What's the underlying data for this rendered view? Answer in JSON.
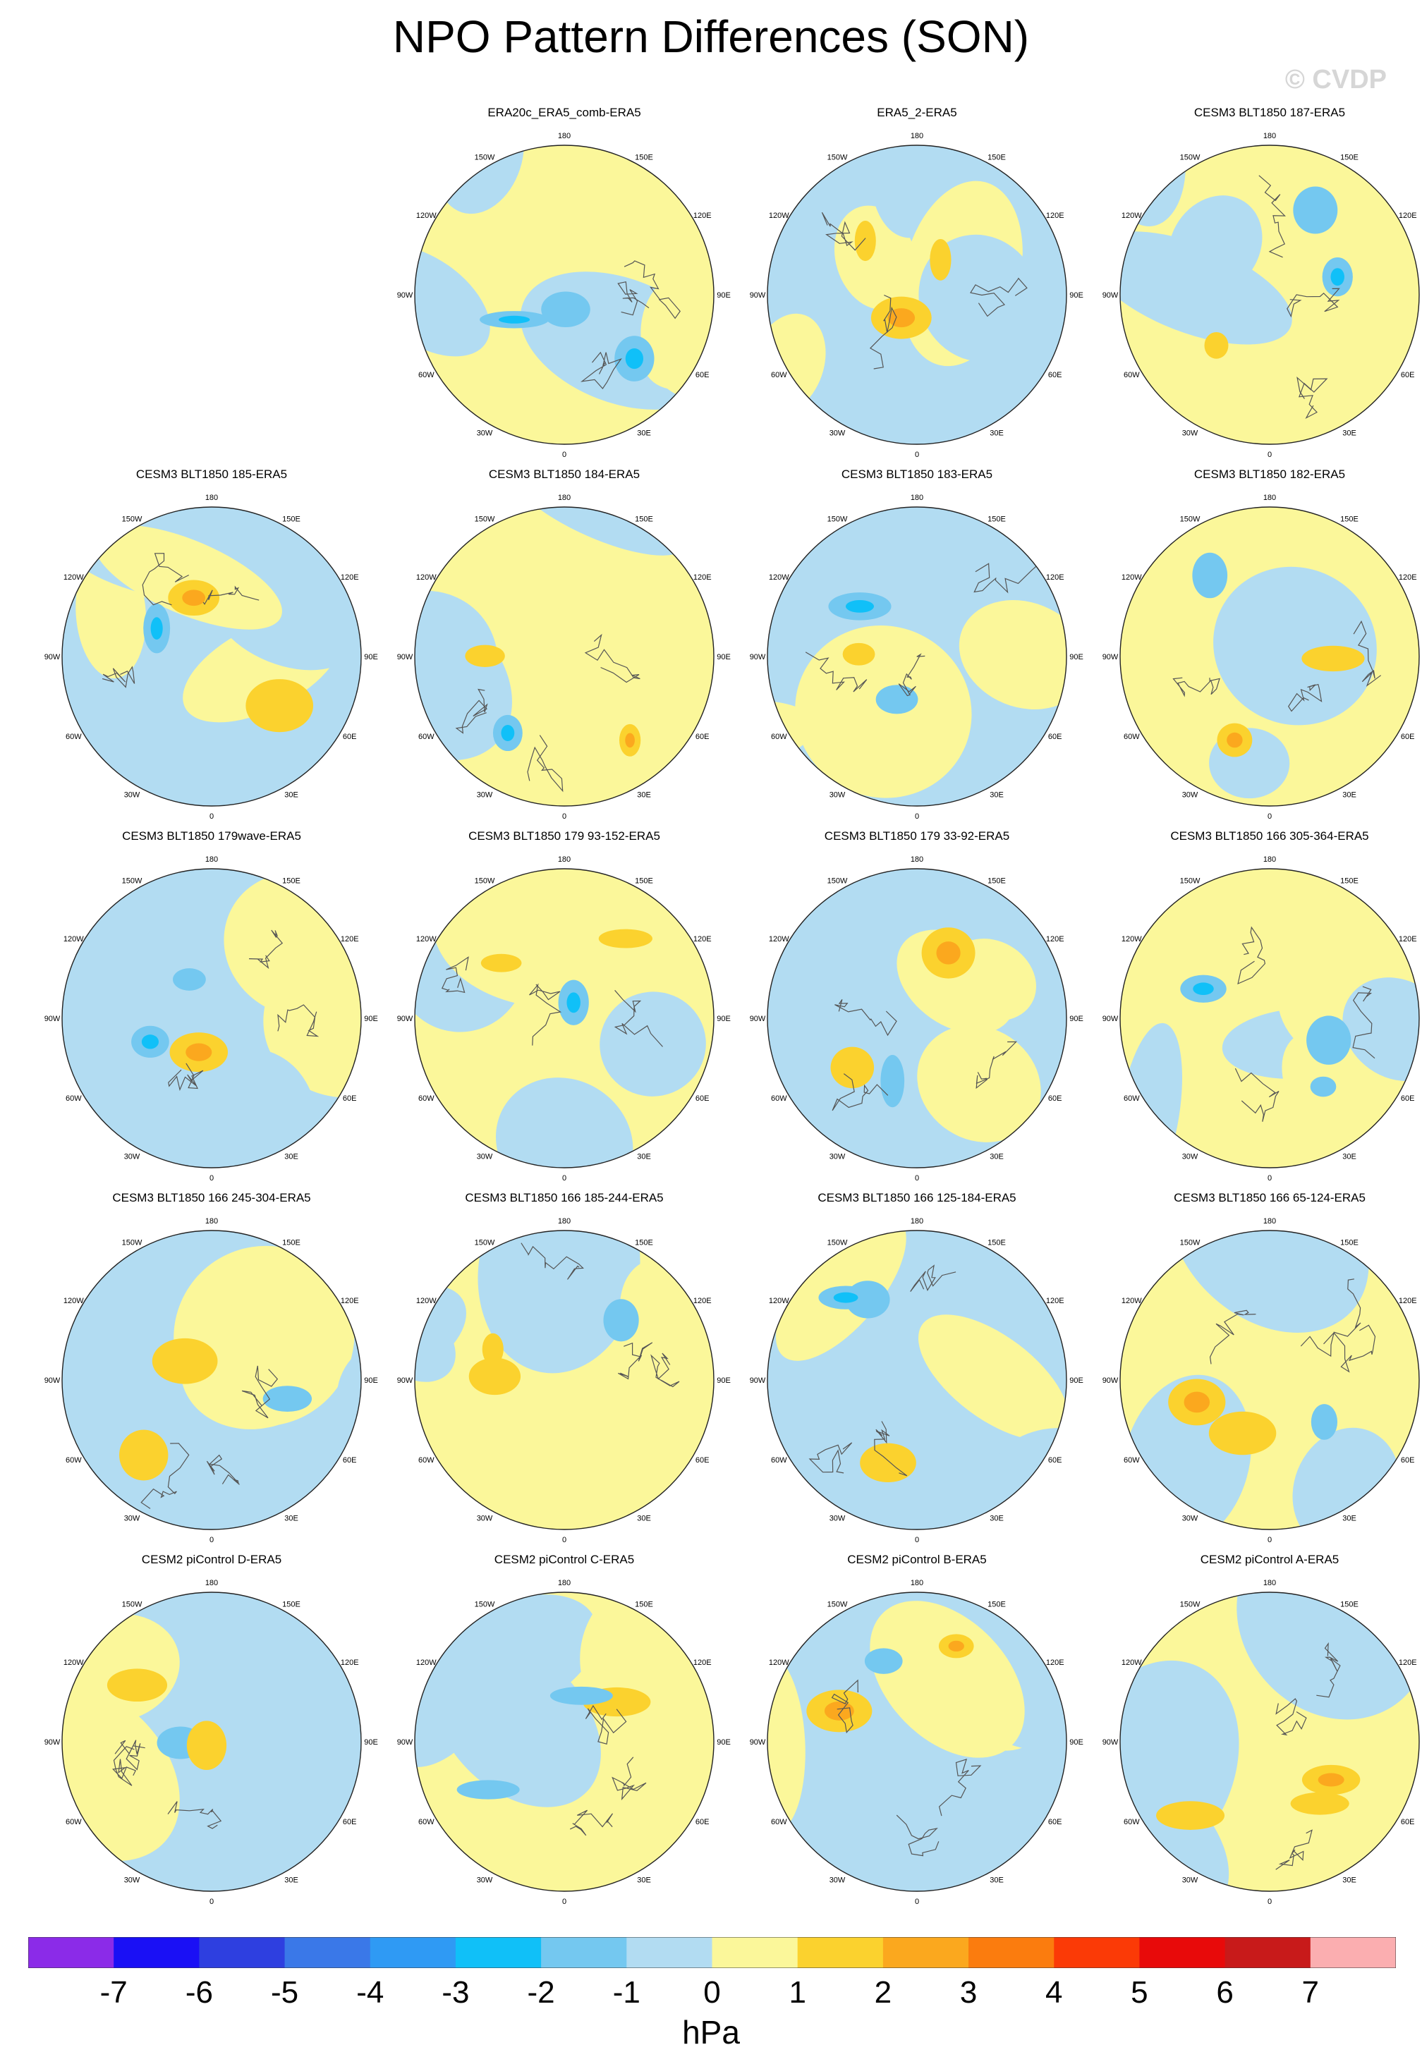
{
  "title": "NPO Pattern Differences (SON)",
  "watermark": "© CVDP",
  "units": "hPa",
  "lon_labels": [
    "180",
    "150E",
    "120E",
    "90E",
    "60E",
    "30E",
    "0",
    "30W",
    "60W",
    "90W",
    "120W",
    "150W"
  ],
  "colorbar": {
    "colors": [
      "#8b2be8",
      "#1a10f5",
      "#2e3fe0",
      "#3a78e8",
      "#2f9af4",
      "#10c0f8",
      "#74c8f0",
      "#b2dcf2",
      "#fbf79a",
      "#fbd22e",
      "#fba81e",
      "#fb7c0e",
      "#fb3a06",
      "#e80a0a",
      "#c81a1a",
      "#fbaeb0"
    ],
    "labels": [
      "-7",
      "-6",
      "-5",
      "-4",
      "-3",
      "-2",
      "-1",
      "0",
      "1",
      "2",
      "3",
      "4",
      "5",
      "6",
      "7"
    ]
  },
  "panels": [
    {
      "title": "ERA20c_ERA5_comb-ERA5",
      "row": 0,
      "col": 1
    },
    {
      "title": "ERA5_2-ERA5",
      "row": 0,
      "col": 2
    },
    {
      "title": "CESM3 BLT1850 187-ERA5",
      "row": 0,
      "col": 3
    },
    {
      "title": "CESM3 BLT1850 185-ERA5",
      "row": 1,
      "col": 0
    },
    {
      "title": "CESM3 BLT1850 184-ERA5",
      "row": 1,
      "col": 1
    },
    {
      "title": "CESM3 BLT1850 183-ERA5",
      "row": 1,
      "col": 2
    },
    {
      "title": "CESM3 BLT1850 182-ERA5",
      "row": 1,
      "col": 3
    },
    {
      "title": "CESM3 BLT1850 179wave-ERA5",
      "row": 2,
      "col": 0
    },
    {
      "title": "CESM3 BLT1850 179 93-152-ERA5",
      "row": 2,
      "col": 1
    },
    {
      "title": "CESM3 BLT1850 179 33-92-ERA5",
      "row": 2,
      "col": 2
    },
    {
      "title": "CESM3 BLT1850 166 305-364-ERA5",
      "row": 2,
      "col": 3
    },
    {
      "title": "CESM3 BLT1850 166 245-304-ERA5",
      "row": 3,
      "col": 0
    },
    {
      "title": "CESM3 BLT1850 166 185-244-ERA5",
      "row": 3,
      "col": 1
    },
    {
      "title": "CESM3 BLT1850 166 125-184-ERA5",
      "row": 3,
      "col": 2
    },
    {
      "title": "CESM3 BLT1850 166 65-124-ERA5",
      "row": 3,
      "col": 3
    },
    {
      "title": "CESM2 piControl D-ERA5",
      "row": 4,
      "col": 0
    },
    {
      "title": "CESM2 piControl C-ERA5",
      "row": 4,
      "col": 1
    },
    {
      "title": "CESM2 piControl B-ERA5",
      "row": 4,
      "col": 2
    },
    {
      "title": "CESM2 piControl A-ERA5",
      "row": 4,
      "col": 3
    }
  ]
}
